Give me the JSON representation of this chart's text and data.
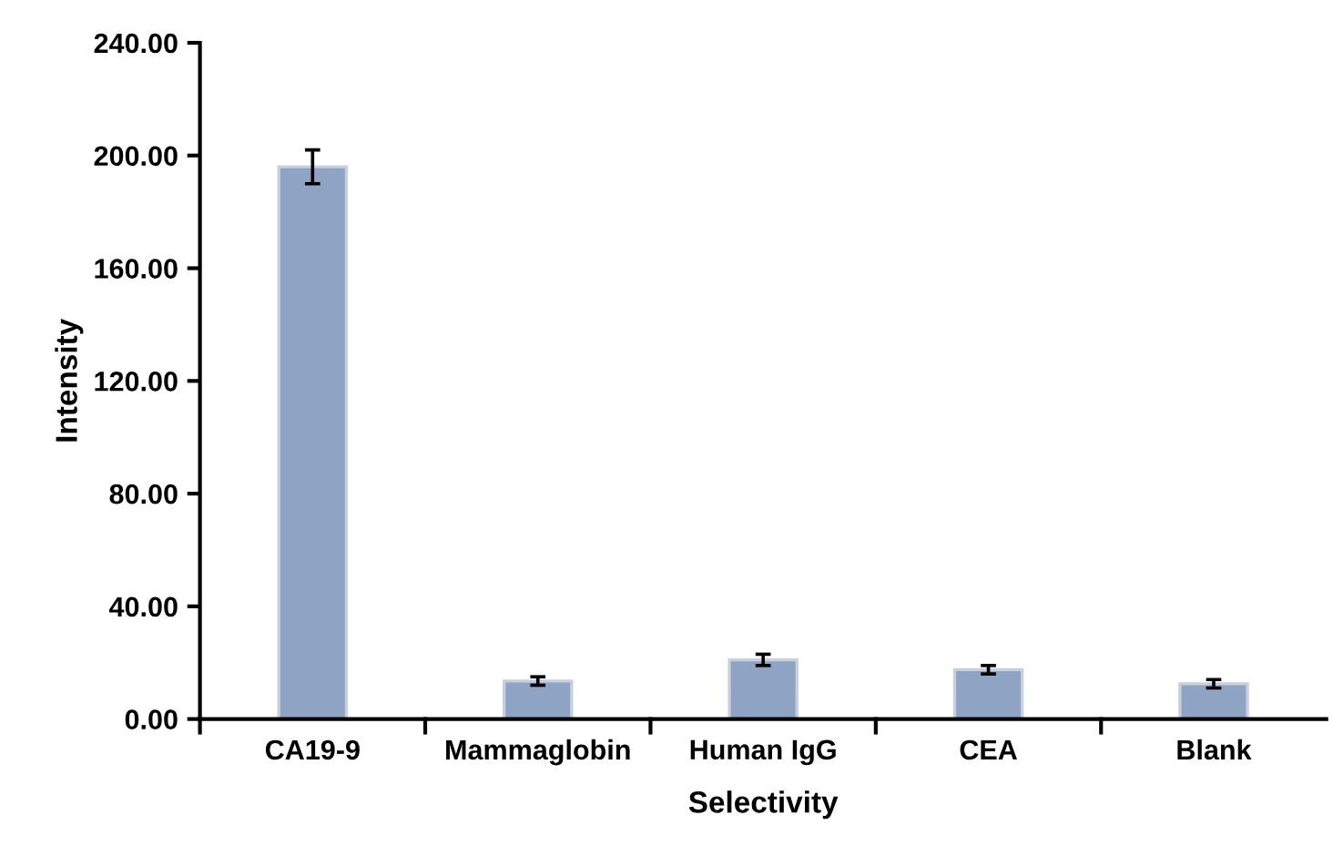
{
  "chart_data": {
    "type": "bar",
    "xlabel": "Selectivity",
    "ylabel": "Intensity",
    "categories": [
      "CA19-9",
      "Mammaglobin",
      "Human IgG",
      "CEA",
      "Blank"
    ],
    "values": [
      196,
      13.5,
      21,
      17.5,
      12.5
    ],
    "errors": [
      6,
      1.5,
      2,
      1.5,
      1.5
    ],
    "color": "#8fa3c4",
    "ylim": [
      0,
      240
    ],
    "yticks": [
      {
        "value": 0,
        "label": "0.00"
      },
      {
        "value": 40,
        "label": "40.00"
      },
      {
        "value": 80,
        "label": "80.00"
      },
      {
        "value": 120,
        "label": "120.00"
      },
      {
        "value": 160,
        "label": "160.00"
      },
      {
        "value": 200,
        "label": "200.00"
      },
      {
        "value": 240,
        "label": "240.00"
      }
    ],
    "grid": false,
    "legend": false
  }
}
